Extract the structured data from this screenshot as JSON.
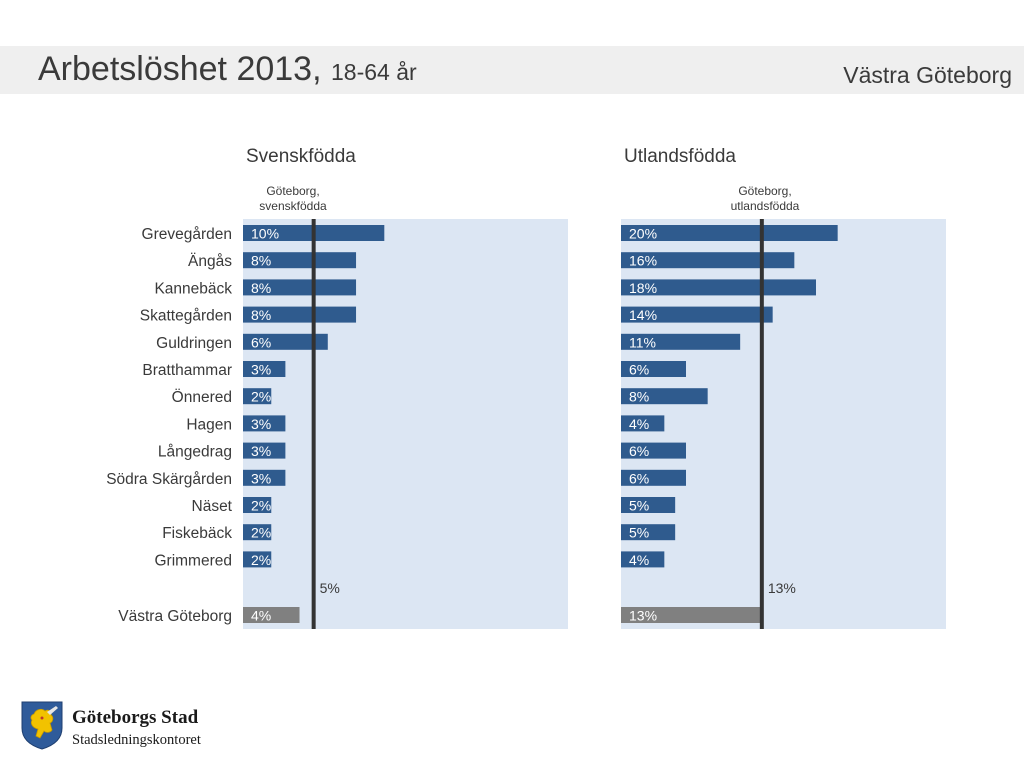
{
  "header": {
    "title": "Arbetslöshet 2013,",
    "subtitle": "18-64 år",
    "region": "Västra Göteborg"
  },
  "colors": {
    "bar": "#2f5b8e",
    "total_bar": "#808080",
    "panel_bg": "#dce6f3",
    "ref_line": "#333333",
    "header_band": "#efefef"
  },
  "chart_data": {
    "type": "bar",
    "orientation": "horizontal",
    "categories": [
      "Grevegården",
      "Ängås",
      "Kannebäck",
      "Skattegården",
      "Guldringen",
      "Bratthammar",
      "Önnered",
      "Hagen",
      "Långedrag",
      "Södra Skärgården",
      "Näset",
      "Fiskebäck",
      "Grimmered"
    ],
    "total_category": "Västra Göteborg",
    "panels": [
      {
        "title": "Svenskfödda",
        "values": [
          10,
          8,
          8,
          8,
          6,
          3,
          2,
          3,
          3,
          3,
          2,
          2,
          2
        ],
        "value_labels": [
          "10%",
          "8%",
          "8%",
          "8%",
          "6%",
          "3%",
          "2%",
          "3%",
          "3%",
          "3%",
          "2%",
          "2%",
          "2%"
        ],
        "total_value": 4,
        "total_label": "4%",
        "reference": {
          "label_line1": "Göteborg,",
          "label_line2": "svenskfödda",
          "value": 5,
          "value_label": "5%"
        },
        "xlim": [
          0,
          23
        ]
      },
      {
        "title": "Utlandsfödda",
        "values": [
          20,
          16,
          18,
          14,
          11,
          6,
          8,
          4,
          6,
          6,
          5,
          5,
          4
        ],
        "value_labels": [
          "20%",
          "16%",
          "18%",
          "14%",
          "11%",
          "6%",
          "8%",
          "4%",
          "6%",
          "6%",
          "5%",
          "5%",
          "4%"
        ],
        "total_value": 13,
        "total_label": "13%",
        "reference": {
          "label_line1": "Göteborg,",
          "label_line2": "utlandsfödda",
          "value": 13,
          "value_label": "13%"
        },
        "xlim": [
          0,
          30
        ]
      }
    ]
  },
  "footer": {
    "org_name": "Göteborgs Stad",
    "org_dept": "Stadsledningskontoret",
    "logo_icon": "lion-coat-of-arms-icon"
  }
}
